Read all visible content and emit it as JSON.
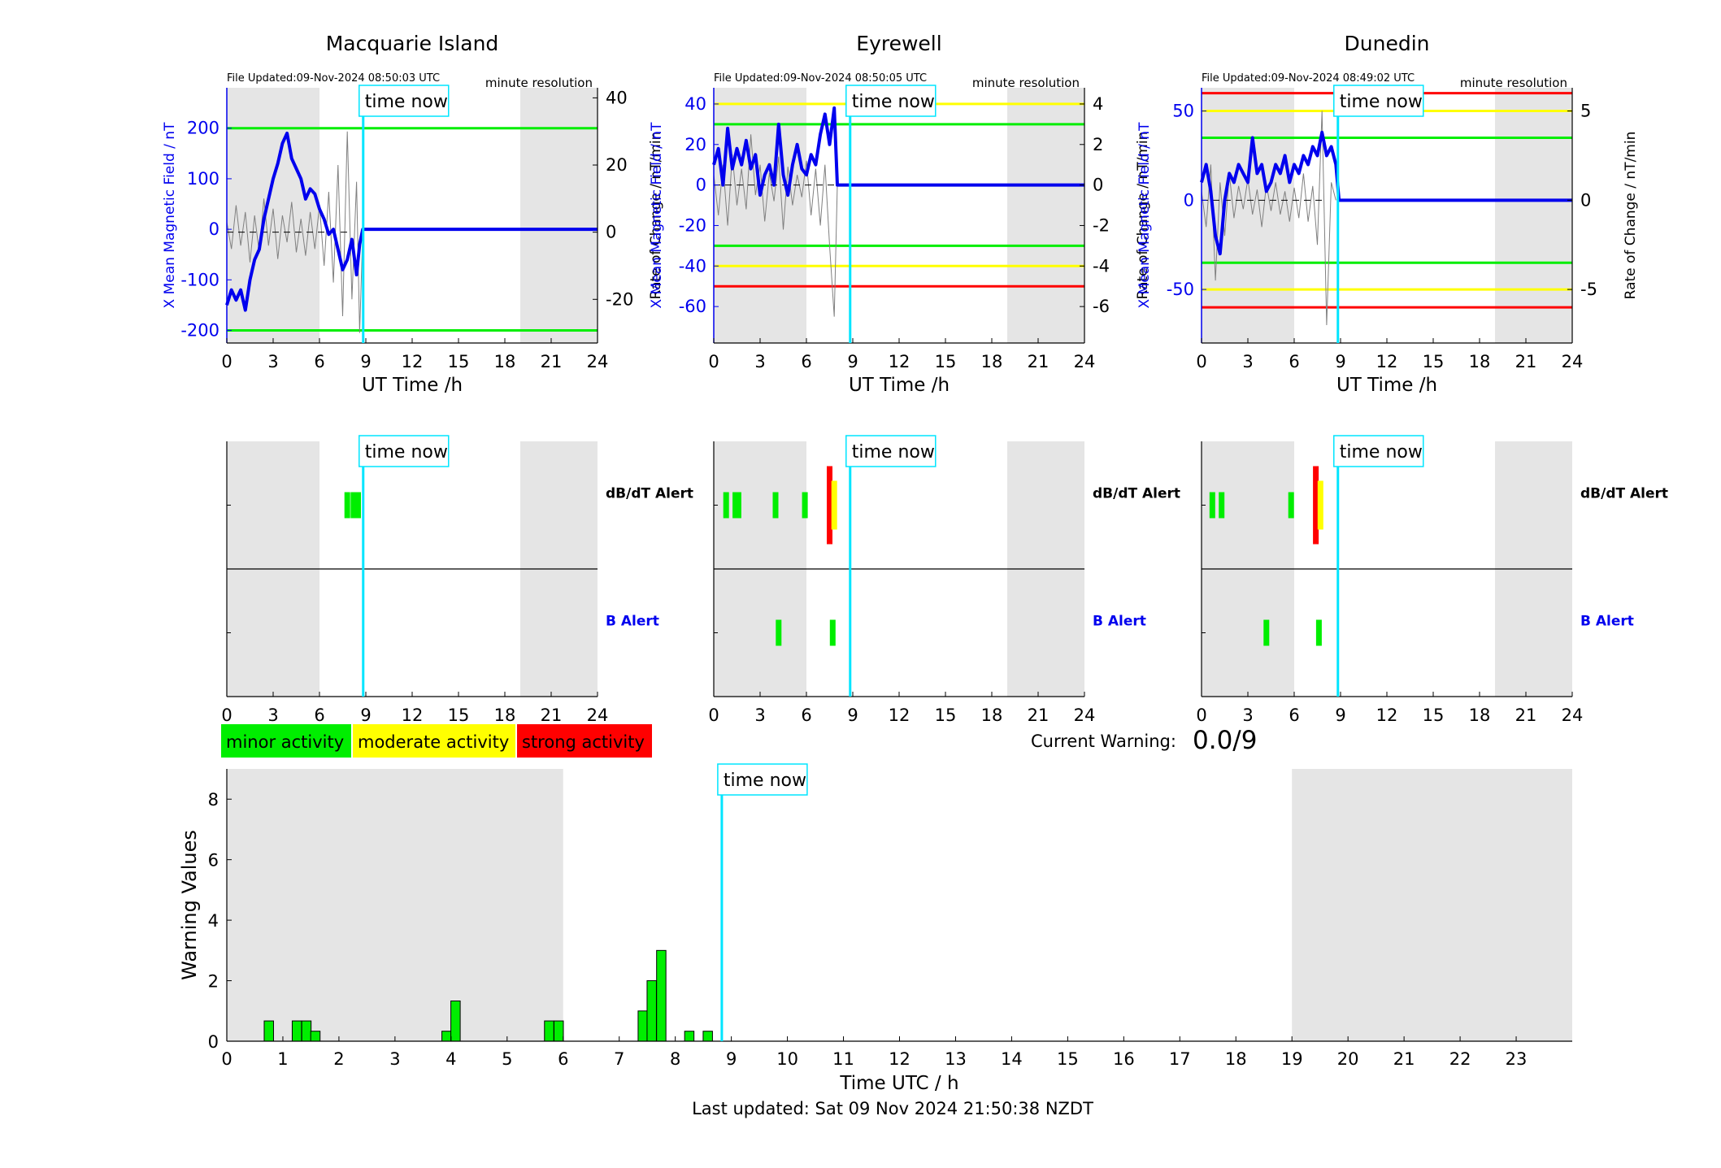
{
  "page": {
    "last_updated": "Last updated: Sat 09 Nov 2024 21:50:38 NZDT",
    "time_now_label": "time now",
    "x_axis_label_top": "UT Time /h",
    "x_ticks_top": [
      "0",
      "3",
      "6",
      "9",
      "12",
      "15",
      "18",
      "21",
      "24"
    ],
    "current_warning_label": "Current Warning:",
    "current_warning_value": "0.0/9",
    "legend": [
      {
        "label": "minor activity",
        "color": "#00ee00"
      },
      {
        "label": "moderate activity",
        "color": "#ffff00"
      },
      {
        "label": "strong activity",
        "color": "#ff0000"
      }
    ],
    "alert_labels": {
      "dbdt": "dB/dT Alert",
      "b": "B Alert"
    },
    "colors": {
      "field": "#0000ee",
      "rate": "#808080",
      "green": "#00ee00",
      "yellow": "#ffff00",
      "red": "#ff0000",
      "cyan": "#00e5ff",
      "night": "#e5e5e5"
    }
  },
  "chart_data": [
    {
      "type": "line",
      "title": "Macquarie Island",
      "file_updated": "File Updated:09-Nov-2024 08:50:03 UTC",
      "resolution": "minute resolution",
      "xlabel": "UT Time /h",
      "ylabel_left": "X Mean Magnetic Field / nT",
      "ylabel_right": "Rate of Change / nT/min",
      "xlim": [
        0,
        24
      ],
      "ylim_left": [
        -225,
        280
      ],
      "yticks_left": [
        -200,
        -100,
        0,
        100,
        200
      ],
      "ylim_right": [
        -33,
        43
      ],
      "yticks_right": [
        -20,
        0,
        20,
        40
      ],
      "night_shading": [
        [
          0,
          6
        ],
        [
          19,
          24
        ]
      ],
      "time_now": 8.83,
      "thresholds": [
        {
          "value": 200,
          "color": "green"
        },
        {
          "value": -200,
          "color": "green"
        }
      ],
      "series": [
        {
          "key": "field",
          "x": [
            0,
            0.3,
            0.6,
            0.9,
            1.2,
            1.5,
            1.8,
            2.1,
            2.4,
            2.7,
            3.0,
            3.3,
            3.6,
            3.9,
            4.2,
            4.5,
            4.8,
            5.1,
            5.4,
            5.7,
            6.0,
            6.3,
            6.6,
            6.9,
            7.2,
            7.5,
            7.8,
            8.1,
            8.4,
            8.6,
            8.8,
            24
          ],
          "y": [
            -150,
            -120,
            -140,
            -120,
            -160,
            -100,
            -60,
            -40,
            20,
            60,
            100,
            130,
            170,
            190,
            140,
            120,
            100,
            60,
            80,
            70,
            40,
            20,
            -10,
            0,
            -40,
            -80,
            -60,
            -20,
            -90,
            -30,
            0,
            0
          ]
        },
        {
          "key": "rate",
          "x": [
            0,
            0.3,
            0.6,
            0.9,
            1.2,
            1.5,
            1.8,
            2.1,
            2.4,
            2.7,
            3.0,
            3.3,
            3.6,
            3.9,
            4.2,
            4.5,
            4.8,
            5.1,
            5.4,
            5.7,
            6.0,
            6.3,
            6.6,
            6.9,
            7.2,
            7.5,
            7.8,
            8.1,
            8.4,
            8.6,
            8.8
          ],
          "y": [
            3,
            -5,
            8,
            -4,
            6,
            -9,
            5,
            -6,
            10,
            -4,
            7,
            -8,
            5,
            -3,
            9,
            -6,
            4,
            -7,
            6,
            -5,
            8,
            -10,
            12,
            -15,
            20,
            -25,
            30,
            -20,
            15,
            -30,
            0
          ]
        }
      ]
    },
    {
      "type": "line",
      "title": "Eyrewell",
      "file_updated": "File Updated:09-Nov-2024 08:50:05 UTC",
      "resolution": "minute resolution",
      "xlabel": "UT Time /h",
      "ylabel_left": "X Mean Magnetic Field / nT",
      "ylabel_right": "Rate of Change / nT/min",
      "xlim": [
        0,
        24
      ],
      "ylim_left": [
        -78,
        48
      ],
      "yticks_left": [
        -60,
        -40,
        -20,
        0,
        20,
        40
      ],
      "ylim_right": [
        -7.8,
        4.8
      ],
      "yticks_right": [
        -6,
        -4,
        -2,
        0,
        2,
        4
      ],
      "night_shading": [
        [
          0,
          6
        ],
        [
          19,
          24
        ]
      ],
      "time_now": 8.83,
      "thresholds": [
        {
          "value": 40,
          "color": "yellow"
        },
        {
          "value": 30,
          "color": "green"
        },
        {
          "value": -30,
          "color": "green"
        },
        {
          "value": -40,
          "color": "yellow"
        },
        {
          "value": -50,
          "color": "red"
        }
      ],
      "series": [
        {
          "key": "field",
          "x": [
            0,
            0.3,
            0.6,
            0.9,
            1.2,
            1.5,
            1.8,
            2.1,
            2.4,
            2.7,
            3.0,
            3.3,
            3.6,
            3.9,
            4.2,
            4.5,
            4.8,
            5.1,
            5.4,
            5.7,
            6.0,
            6.3,
            6.6,
            6.9,
            7.2,
            7.5,
            7.8,
            8.0,
            24
          ],
          "y": [
            10,
            18,
            0,
            28,
            8,
            18,
            10,
            22,
            8,
            15,
            -5,
            5,
            10,
            0,
            30,
            5,
            -5,
            10,
            20,
            8,
            5,
            15,
            10,
            25,
            35,
            20,
            38,
            0,
            0
          ]
        },
        {
          "key": "rate",
          "x": [
            0,
            0.3,
            0.6,
            0.9,
            1.2,
            1.5,
            1.8,
            2.1,
            2.4,
            2.7,
            3.0,
            3.3,
            3.6,
            3.9,
            4.2,
            4.5,
            4.8,
            5.1,
            5.4,
            5.7,
            6.0,
            6.3,
            6.6,
            6.9,
            7.2,
            7.5,
            7.8,
            8.0
          ],
          "y": [
            0.5,
            -1.5,
            1.0,
            -2.0,
            1.5,
            -1.0,
            0.8,
            -1.2,
            2.5,
            -0.5,
            1.0,
            -1.8,
            0.6,
            -0.8,
            1.4,
            -2.2,
            0.9,
            -1.0,
            0.5,
            -0.6,
            1.2,
            -1.5,
            0.8,
            -2.0,
            1.0,
            -3.0,
            -6.5,
            0
          ]
        }
      ]
    },
    {
      "type": "line",
      "title": "Dunedin",
      "file_updated": "File Updated:09-Nov-2024 08:49:02 UTC",
      "resolution": "minute resolution",
      "xlabel": "UT Time /h",
      "ylabel_left": "X Mean Magnetic Field / nT",
      "ylabel_right": "Rate of Change / nT/min",
      "xlim": [
        0,
        24
      ],
      "ylim_left": [
        -80,
        63
      ],
      "yticks_left": [
        -50,
        0,
        50
      ],
      "ylim_right": [
        -8,
        6.3
      ],
      "yticks_right": [
        -5,
        0,
        5
      ],
      "night_shading": [
        [
          0,
          6
        ],
        [
          19,
          24
        ]
      ],
      "time_now": 8.83,
      "thresholds": [
        {
          "value": 60,
          "color": "red"
        },
        {
          "value": 50,
          "color": "yellow"
        },
        {
          "value": 35,
          "color": "green"
        },
        {
          "value": -35,
          "color": "green"
        },
        {
          "value": -50,
          "color": "yellow"
        },
        {
          "value": -60,
          "color": "red"
        }
      ],
      "series": [
        {
          "key": "field",
          "x": [
            0,
            0.3,
            0.6,
            0.9,
            1.2,
            1.5,
            1.8,
            2.1,
            2.4,
            2.7,
            3.0,
            3.3,
            3.6,
            3.9,
            4.2,
            4.5,
            4.8,
            5.1,
            5.4,
            5.7,
            6.0,
            6.3,
            6.6,
            6.9,
            7.2,
            7.5,
            7.8,
            8.1,
            8.4,
            8.7,
            8.9,
            24
          ],
          "y": [
            10,
            20,
            5,
            -20,
            -30,
            0,
            15,
            10,
            20,
            15,
            10,
            35,
            15,
            20,
            5,
            10,
            20,
            15,
            25,
            10,
            20,
            15,
            25,
            20,
            30,
            25,
            38,
            25,
            30,
            20,
            0,
            0
          ]
        },
        {
          "key": "rate",
          "x": [
            0,
            0.3,
            0.6,
            0.9,
            1.2,
            1.5,
            1.8,
            2.1,
            2.4,
            2.7,
            3.0,
            3.3,
            3.6,
            3.9,
            4.2,
            4.5,
            4.8,
            5.1,
            5.4,
            5.7,
            6.0,
            6.3,
            6.6,
            6.9,
            7.2,
            7.5,
            7.8,
            8.1,
            8.4,
            8.7
          ],
          "y": [
            0.5,
            -1.5,
            2.0,
            -4.5,
            1.0,
            -2.0,
            1.5,
            -1.0,
            0.8,
            -0.5,
            1.2,
            -0.8,
            0.6,
            -1.5,
            0.9,
            -0.6,
            1.0,
            -0.8,
            0.5,
            -1.2,
            0.7,
            -1.0,
            1.5,
            -1.2,
            0.8,
            -2.5,
            5.0,
            -7.0,
            1.0,
            0
          ]
        }
      ]
    },
    {
      "type": "bar",
      "title": "",
      "chart": "alerts",
      "xlim": [
        0,
        24
      ],
      "x_ticks": [
        "0",
        "3",
        "6",
        "9",
        "12",
        "15",
        "18",
        "21",
        "24"
      ],
      "time_now": 8.83,
      "panels": [
        {
          "station": "Macquarie Island",
          "dbdt": [
            {
              "x": 7.8,
              "level": 1
            },
            {
              "x": 8.2,
              "level": 1
            },
            {
              "x": 8.5,
              "level": 1
            }
          ],
          "b": []
        },
        {
          "station": "Eyrewell",
          "dbdt": [
            {
              "x": 0.8,
              "level": 1
            },
            {
              "x": 1.4,
              "level": 1
            },
            {
              "x": 1.6,
              "level": 1
            },
            {
              "x": 4.0,
              "level": 1
            },
            {
              "x": 5.9,
              "level": 1
            },
            {
              "x": 7.5,
              "level": 3
            },
            {
              "x": 7.8,
              "level": 2
            }
          ],
          "b": [
            {
              "x": 4.2,
              "level": 1
            },
            {
              "x": 7.7,
              "level": 1
            }
          ]
        },
        {
          "station": "Dunedin",
          "dbdt": [
            {
              "x": 0.7,
              "level": 1
            },
            {
              "x": 1.3,
              "level": 1
            },
            {
              "x": 5.8,
              "level": 1
            },
            {
              "x": 7.4,
              "level": 3
            },
            {
              "x": 7.7,
              "level": 2
            }
          ],
          "b": [
            {
              "x": 4.2,
              "level": 1
            },
            {
              "x": 7.6,
              "level": 1
            }
          ]
        }
      ]
    },
    {
      "type": "bar",
      "title": "",
      "xlabel": "Time UTC / h",
      "ylabel": "Warning Values",
      "xlim": [
        0,
        24
      ],
      "ylim": [
        0,
        9
      ],
      "yticks": [
        0,
        2,
        4,
        6,
        8
      ],
      "x_ticks": [
        "0",
        "1",
        "2",
        "3",
        "4",
        "5",
        "6",
        "7",
        "8",
        "9",
        "10",
        "11",
        "12",
        "13",
        "14",
        "15",
        "16",
        "17",
        "18",
        "19",
        "20",
        "21",
        "22",
        "23"
      ],
      "night_shading": [
        [
          0,
          6
        ],
        [
          19,
          24
        ]
      ],
      "time_now": 8.83,
      "x": [
        0.75,
        1.25,
        1.42,
        1.58,
        3.92,
        4.08,
        5.75,
        5.92,
        7.42,
        7.58,
        7.75,
        8.25,
        8.58
      ],
      "values": [
        0.67,
        0.67,
        0.67,
        0.33,
        0.33,
        1.33,
        0.67,
        0.67,
        1.0,
        2.0,
        3.0,
        0.33,
        0.33
      ]
    }
  ]
}
